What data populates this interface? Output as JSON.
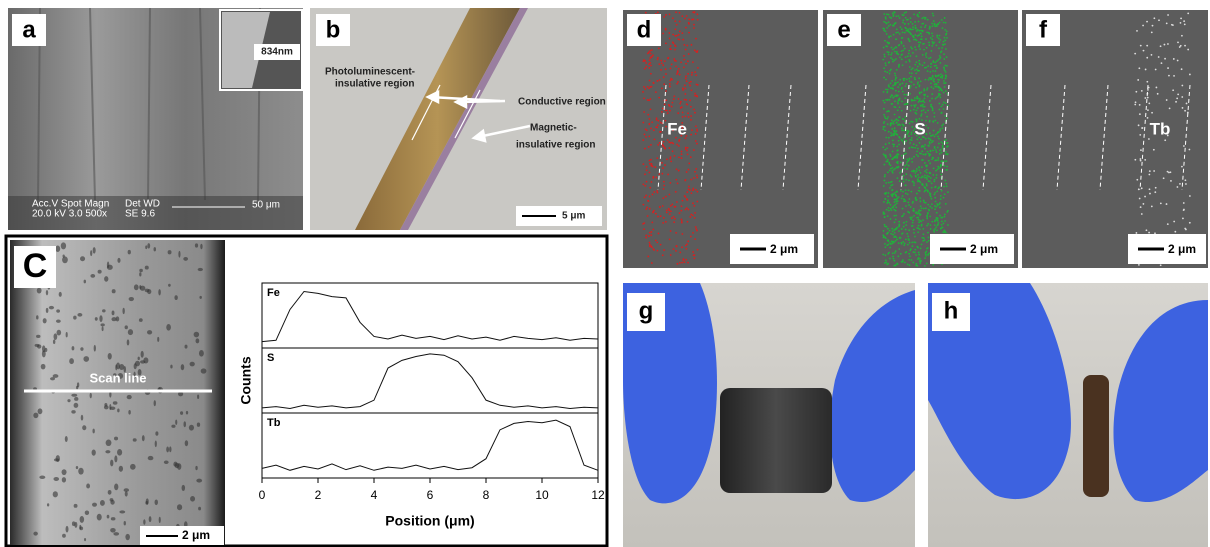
{
  "panels": {
    "a": {
      "label": "a",
      "inset": "834nm",
      "sem_header_1": "Acc.V  Spot Magn",
      "sem_header_2": "Det  WD",
      "sem_values_1": "20.0 kV 3.0   500x",
      "sem_values_2": "SE   9.6",
      "scale": "50 μm"
    },
    "b": {
      "label": "b",
      "region_1": "Photoluminescent-",
      "region_1b": "insulative region",
      "region_2": "Conductive region",
      "region_3": "Magnetic-",
      "region_3b": "insulative region",
      "scale": "5 μm"
    },
    "c": {
      "label": "C",
      "scan": "Scan line",
      "scale": "2 μm"
    },
    "d": {
      "label": "d",
      "element": "Fe",
      "scale": "2 μm"
    },
    "e": {
      "label": "e",
      "element": "S",
      "scale": "2 μm"
    },
    "f": {
      "label": "f",
      "element": "Tb",
      "scale": "2 μm"
    },
    "g": {
      "label": "g"
    },
    "h": {
      "label": "h"
    }
  },
  "chart_data": {
    "type": "line",
    "x": [
      0,
      0.5,
      1,
      1.5,
      2,
      2.5,
      3,
      3.5,
      4,
      4.5,
      5,
      5.5,
      6,
      6.5,
      7,
      7.5,
      8,
      8.5,
      9,
      9.5,
      10,
      10.5,
      11,
      11.5,
      12
    ],
    "xlim": [
      0,
      12
    ],
    "xticks": [
      0,
      2,
      4,
      6,
      8,
      10,
      12
    ],
    "xlabel": "Position (μm)",
    "ylabel": "Counts",
    "series": [
      {
        "name": "Fe",
        "color": "#111111",
        "values": [
          10,
          12,
          60,
          88,
          85,
          80,
          78,
          40,
          18,
          14,
          20,
          15,
          18,
          13,
          19,
          14,
          17,
          12,
          18,
          15,
          13,
          16,
          12,
          15,
          14
        ]
      },
      {
        "name": "S",
        "color": "#111111",
        "values": [
          8,
          10,
          7,
          12,
          9,
          11,
          8,
          10,
          20,
          70,
          82,
          88,
          92,
          90,
          80,
          55,
          20,
          12,
          9,
          11,
          8,
          10,
          7,
          9,
          8
        ]
      },
      {
        "name": "Tb",
        "color": "#111111",
        "values": [
          15,
          20,
          12,
          18,
          14,
          22,
          13,
          19,
          12,
          17,
          15,
          20,
          14,
          18,
          13,
          16,
          30,
          75,
          85,
          88,
          86,
          90,
          80,
          20,
          12
        ]
      }
    ]
  }
}
